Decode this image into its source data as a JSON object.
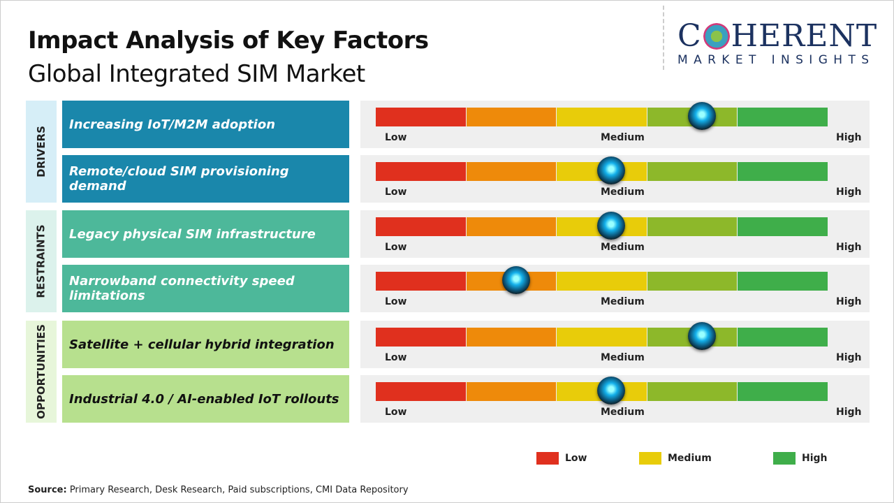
{
  "title": "Impact Analysis of Key Factors",
  "subtitle": "Global Integrated SIM Market",
  "logo": {
    "big_left": "C",
    "big_right": "HERENT",
    "small": "MARKET INSIGHTS"
  },
  "chart_data": {
    "type": "table",
    "scale_labels": {
      "low": "Low",
      "medium": "Medium",
      "high": "High"
    },
    "segment_colors": [
      "#e0301e",
      "#ee8a0a",
      "#e8cc0a",
      "#8db82a",
      "#3fae4a"
    ],
    "categories": [
      {
        "name": "DRIVERS",
        "color": "#1a87ab",
        "bg": "#d6eef7",
        "text": "#ffffff",
        "factors": [
          {
            "label": "Increasing IoT/M2M adoption",
            "impact": 0.72
          },
          {
            "label": "Remote/cloud SIM provisioning demand",
            "impact": 0.52
          }
        ]
      },
      {
        "name": "RESTRAINTS",
        "color": "#4db89a",
        "bg": "#dcf2ec",
        "text": "#ffffff",
        "factors": [
          {
            "label": "Legacy physical SIM infrastructure",
            "impact": 0.52
          },
          {
            "label": "Narrowband connectivity speed limitations",
            "impact": 0.31
          }
        ]
      },
      {
        "name": "OPPORTUNITIES",
        "color": "#b7e08e",
        "bg": "#e7f6da",
        "text": "#111111",
        "factors": [
          {
            "label": "Satellite + cellular hybrid integration",
            "impact": 0.72
          },
          {
            "label": "Industrial 4.0 / AI-enabled IoT rollouts",
            "impact": 0.52
          }
        ]
      }
    ],
    "legend": [
      {
        "label": "Low",
        "color": "#e0301e"
      },
      {
        "label": "Medium",
        "color": "#e8cc0a"
      },
      {
        "label": "High",
        "color": "#3fae4a"
      }
    ]
  },
  "source": {
    "label": "Source:",
    "text": " Primary Research, Desk Research, Paid subscriptions, CMI Data Repository"
  }
}
